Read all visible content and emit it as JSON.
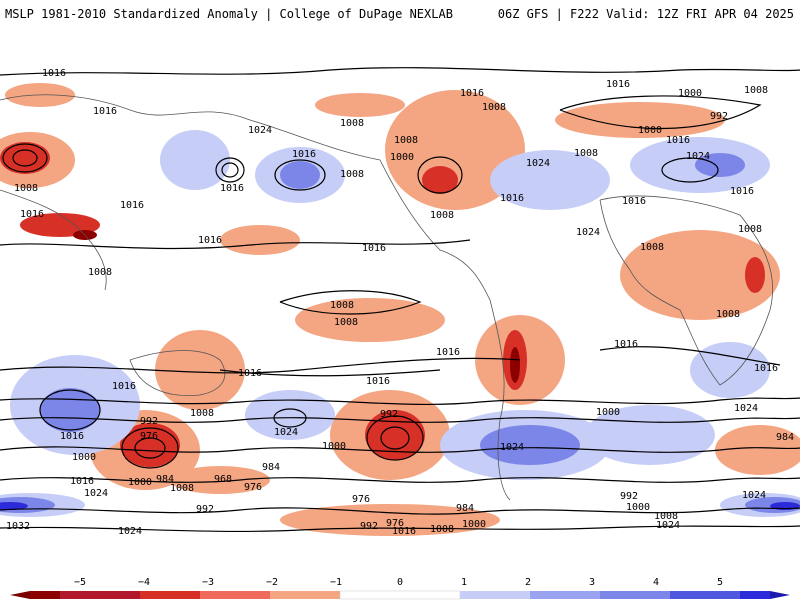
{
  "header": {
    "left_title": "MSLP 1981-2010 Standardized Anomaly | College of DuPage NEXLAB",
    "right_title": "06Z GFS | F222 Valid: 12Z FRI APR 04 2025"
  },
  "colors": {
    "neg_strong": "#8c0000",
    "neg_mid": "#d73027",
    "neg_light": "#f4a582",
    "pos_light": "#c6cdf7",
    "pos_mid": "#7b86e8",
    "pos_strong": "#2b2bd9",
    "contour": "#000000",
    "coast": "#555555"
  },
  "contour_labels": [
    "1016",
    "1016",
    "1016",
    "1024",
    "1016",
    "1008",
    "1016",
    "1008",
    "1016",
    "1016",
    "1016",
    "1008",
    "1008",
    "1008",
    "1000",
    "1016",
    "1008",
    "1024",
    "1008",
    "1016",
    "1000",
    "1008",
    "992",
    "1000",
    "1016",
    "1024",
    "1016",
    "1008",
    "1024",
    "1016",
    "1008",
    "1016",
    "1008",
    "1008",
    "1008",
    "1008",
    "1016",
    "1016",
    "1016",
    "1016",
    "1016",
    "1016",
    "1024",
    "1008",
    "1000",
    "992",
    "976",
    "992",
    "1024",
    "1000",
    "1016",
    "1000",
    "984",
    "984",
    "1008",
    "968",
    "976",
    "1000",
    "1024",
    "992",
    "1032",
    "1024",
    "976",
    "992",
    "976",
    "1008",
    "1000",
    "984",
    "1016",
    "1016",
    "992",
    "1000",
    "1024",
    "1008",
    "1024",
    "984",
    "1024"
  ],
  "colorbar": {
    "ticks": [
      "−5",
      "−4",
      "−3",
      "−2",
      "−1",
      "0",
      "1",
      "2",
      "3",
      "4",
      "5"
    ]
  }
}
